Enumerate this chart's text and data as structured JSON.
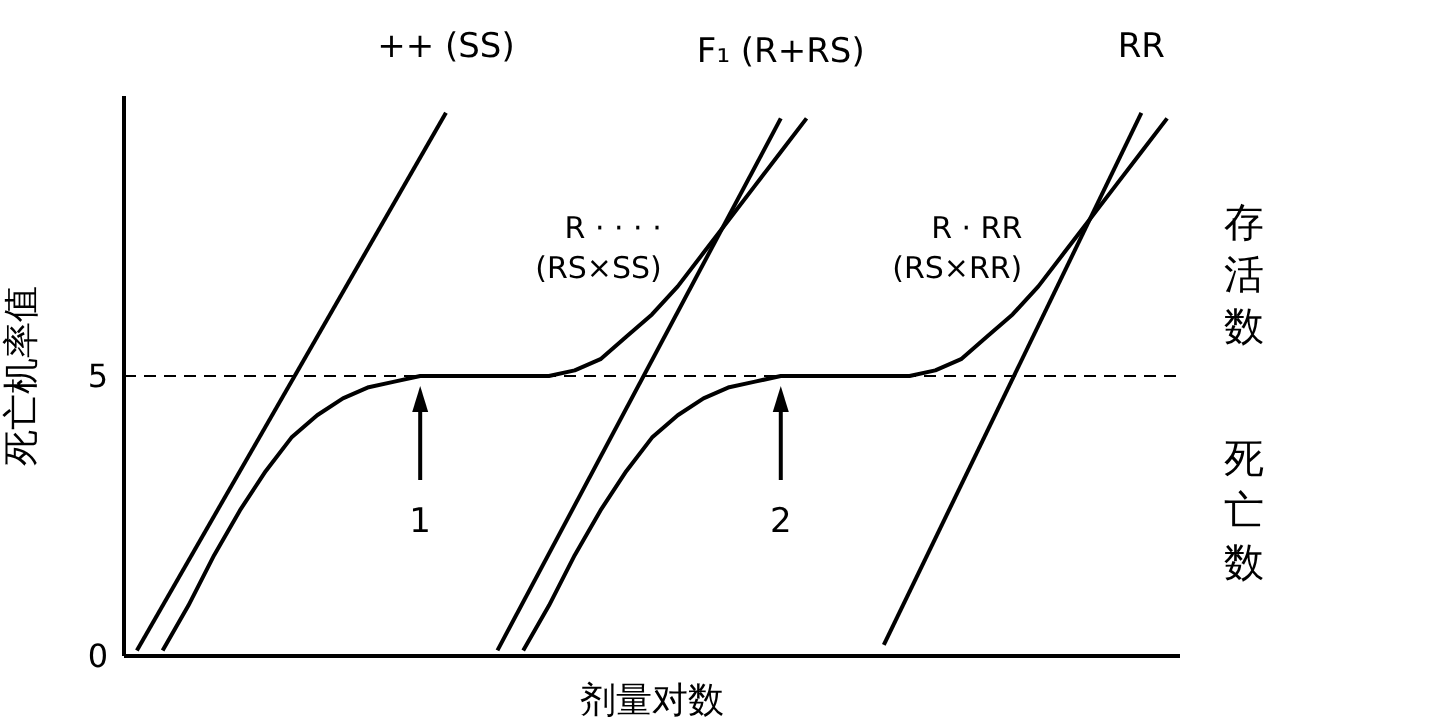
{
  "chart_data": {
    "type": "line",
    "xlabel": "剂量对数",
    "ylabel": "死亡机率值",
    "categories": [
      null,
      null,
      null,
      null,
      null,
      null,
      null,
      null,
      null,
      null,
      null,
      null,
      null,
      null,
      null,
      null,
      null,
      null,
      null,
      null,
      null,
      null,
      null,
      null,
      null,
      null,
      null,
      null,
      null,
      null,
      null,
      null,
      null,
      null,
      null,
      null,
      null,
      null,
      null,
      null,
      null
    ],
    "ylim": [
      0,
      10
    ],
    "yticks": [
      0,
      5
    ],
    "marker": "none",
    "line_style": "solid",
    "series": [
      {
        "name": "++ (SS)",
        "color": "#000000",
        "values": [
          0.1,
          null,
          null,
          null,
          null,
          null,
          null,
          null,
          null,
          null,
          null,
          null,
          9.7,
          null,
          null,
          null,
          null,
          null,
          null,
          null,
          null,
          null,
          null,
          null,
          null,
          null,
          null,
          null,
          null,
          null,
          null,
          null,
          null,
          null,
          null,
          null,
          null,
          null,
          null,
          null,
          null
        ]
      },
      {
        "name": "R · · · ·\n(RS×SS)",
        "color": "#000000",
        "values": [
          null,
          0.1,
          0.9,
          1.8,
          2.6,
          3.3,
          3.9,
          4.3,
          4.6,
          4.8,
          4.9,
          5.0,
          5.0,
          5.0,
          5.0,
          5.0,
          5.0,
          5.1,
          5.3,
          5.7,
          6.1,
          6.6,
          7.2,
          7.8,
          8.4,
          9.0,
          9.6,
          null,
          null,
          null,
          null,
          null,
          null,
          null,
          null,
          null,
          null,
          null,
          null,
          null,
          null
        ]
      },
      {
        "name": "F₁ (R+RS)",
        "color": "#000000",
        "values": [
          null,
          null,
          null,
          null,
          null,
          null,
          null,
          null,
          null,
          null,
          null,
          null,
          null,
          null,
          0.1,
          null,
          null,
          null,
          null,
          null,
          null,
          null,
          null,
          null,
          null,
          9.6,
          null,
          null,
          null,
          null,
          null,
          null,
          null,
          null,
          null,
          null,
          null,
          null,
          null,
          null,
          null
        ]
      },
      {
        "name": "R · RR\n(RS×RR)",
        "color": "#000000",
        "values": [
          null,
          null,
          null,
          null,
          null,
          null,
          null,
          null,
          null,
          null,
          null,
          null,
          null,
          null,
          null,
          0.1,
          0.9,
          1.8,
          2.6,
          3.3,
          3.9,
          4.3,
          4.6,
          4.8,
          4.9,
          5.0,
          5.0,
          5.0,
          5.0,
          5.0,
          5.0,
          5.1,
          5.3,
          5.7,
          6.1,
          6.6,
          7.2,
          7.8,
          8.4,
          9.0,
          9.6
        ]
      },
      {
        "name": "RR",
        "color": "#000000",
        "values": [
          null,
          null,
          null,
          null,
          null,
          null,
          null,
          null,
          null,
          null,
          null,
          null,
          null,
          null,
          null,
          null,
          null,
          null,
          null,
          null,
          null,
          null,
          null,
          null,
          null,
          null,
          null,
          null,
          null,
          0.2,
          null,
          null,
          null,
          null,
          null,
          null,
          null,
          null,
          null,
          9.7,
          null
        ]
      }
    ],
    "ref_lines": [
      {
        "axis": "y",
        "value": 5,
        "line_style": "dashed",
        "color": "#000000"
      }
    ],
    "annotations": [
      "1",
      "2",
      "存活数",
      "死亡数"
    ]
  }
}
